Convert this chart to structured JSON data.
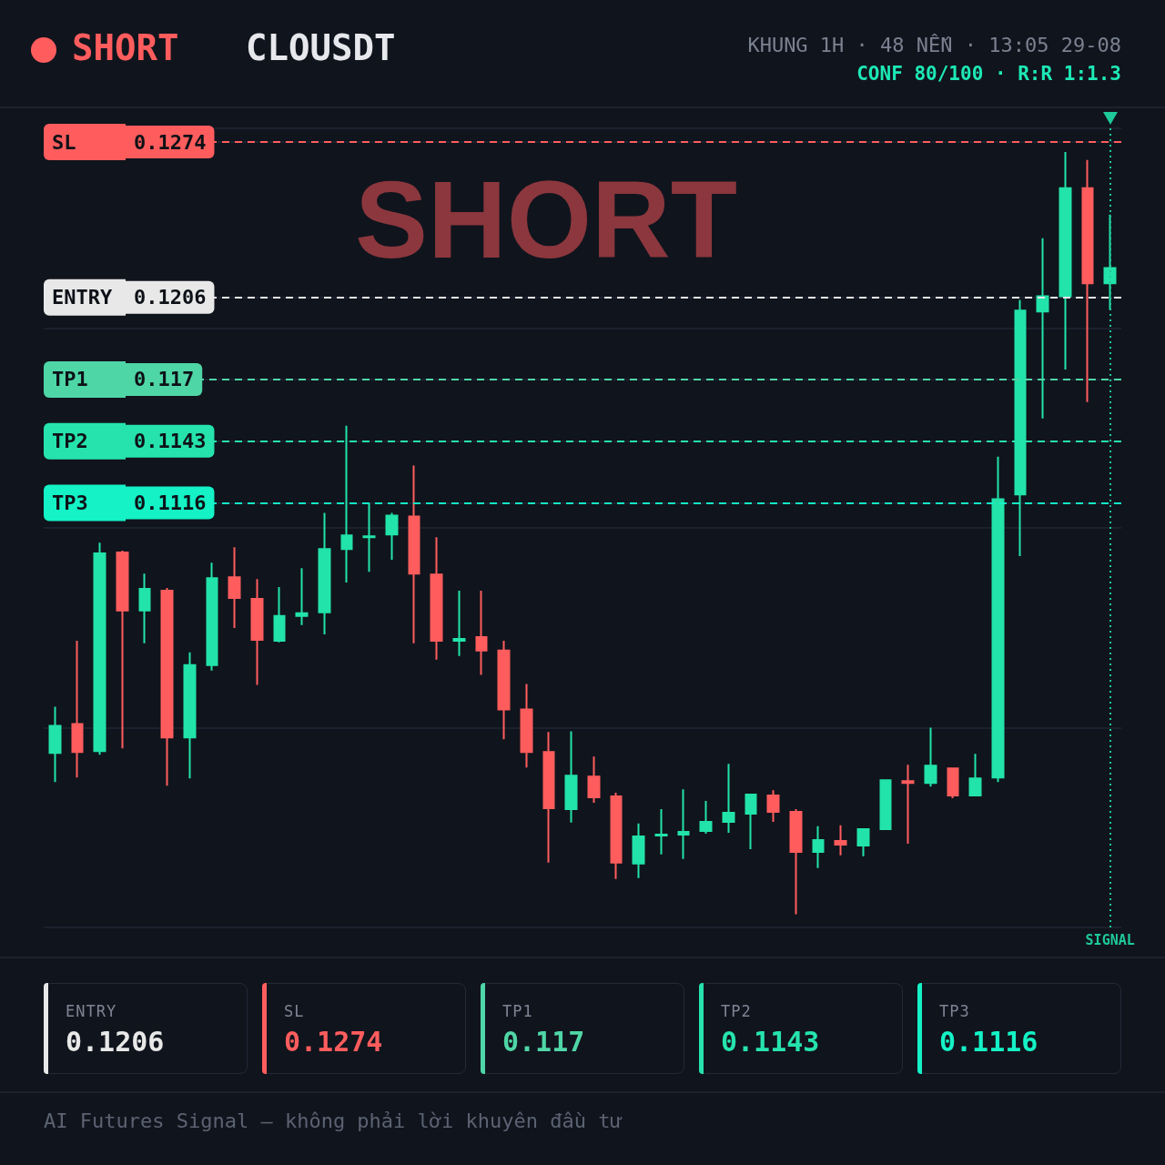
{
  "chart_data": [
    {
      "type": "candlestick",
      "title": "CLOUSDT",
      "subtitle": "SHORT",
      "annotations": [
        "KHUNG 1H · 48 NẾN · 13:05 29-08",
        "CONF 80/100 · R:R 1:1.3",
        "SHORT"
      ],
      "categories": [
        null,
        null,
        null,
        null,
        null,
        null,
        null,
        null,
        null,
        null,
        null,
        null,
        null,
        null,
        null,
        null,
        null,
        null,
        null,
        null,
        null,
        null,
        null,
        null,
        null,
        null,
        null,
        null,
        null,
        null,
        null,
        null,
        null,
        null,
        null,
        null,
        null,
        null,
        null,
        null,
        null,
        null,
        null,
        null,
        null,
        null,
        null,
        null
      ],
      "ohlc": [
        [
          0.10064,
          0.10267,
          0.09937,
          0.10183
        ],
        [
          0.10191,
          0.10556,
          0.09957,
          0.10068
        ],
        [
          0.10072,
          0.10985,
          0.10056,
          0.10938
        ],
        [
          0.10942,
          0.1095,
          0.10084,
          0.10688
        ],
        [
          0.10688,
          0.1085,
          0.10545,
          0.10783
        ],
        [
          0.10775,
          0.10787,
          0.09921,
          0.10132
        ],
        [
          0.10132,
          0.10505,
          0.09953,
          0.10449
        ],
        [
          0.10449,
          0.10898,
          0.10425,
          0.1083
        ],
        [
          0.10834,
          0.10965,
          0.10612,
          0.10743
        ],
        [
          0.10739,
          0.10826,
          0.10362,
          0.1056
        ],
        [
          0.10556,
          0.10791,
          0.10549,
          0.10664
        ],
        [
          0.10664,
          0.10874,
          0.10624,
          0.10676
        ],
        [
          0.1068,
          0.11116,
          0.10584,
          0.10957
        ],
        [
          0.10957,
          0.11497,
          0.10811,
          0.11017
        ],
        [
          0.11009,
          0.1116,
          0.10858,
          0.11013
        ],
        [
          0.11021,
          0.11116,
          0.1091,
          0.11104
        ],
        [
          0.111,
          0.11323,
          0.10545,
          0.1085
        ],
        [
          0.10846,
          0.11009,
          0.10473,
          0.10556
        ],
        [
          0.10556,
          0.10775,
          0.10489,
          0.10564
        ],
        [
          0.10572,
          0.10775,
          0.10406,
          0.10513
        ],
        [
          0.10513,
          0.10556,
          0.10124,
          0.10255
        ],
        [
          0.10255,
          0.10366,
          0.10001,
          0.10068
        ],
        [
          0.10068,
          0.10156,
          0.09584,
          0.09822
        ],
        [
          0.09818,
          0.10159,
          0.09759,
          0.09965
        ],
        [
          0.09961,
          0.10048,
          0.09846,
          0.0987
        ],
        [
          0.09874,
          0.0989,
          0.09512,
          0.09584
        ],
        [
          0.0958,
          0.09755,
          0.09516,
          0.09699
        ],
        [
          0.09703,
          0.09818,
          0.0962,
          0.09707
        ],
        [
          0.09707,
          0.09905,
          0.096,
          0.09719
        ],
        [
          0.09723,
          0.09854,
          0.09711,
          0.09762
        ],
        [
          0.09762,
          0.10017,
          0.09715,
          0.09802
        ],
        [
          0.09798,
          0.09882,
          0.09643,
          0.09882
        ],
        [
          0.09878,
          0.09901,
          0.09762,
          0.09806
        ],
        [
          0.09806,
          0.09818,
          0.09358,
          0.09631
        ],
        [
          0.09631,
          0.09743,
          0.0956,
          0.09683
        ],
        [
          0.09679,
          0.09747,
          0.09616,
          0.09663
        ],
        [
          0.09659,
          0.09735,
          0.09612,
          0.09731
        ],
        [
          0.09731,
          0.09949,
          0.09727,
          0.09945
        ],
        [
          0.09941,
          0.10013,
          0.09667,
          0.09933
        ],
        [
          0.09933,
          0.10175,
          0.09917,
          0.10009
        ],
        [
          0.09997,
          0.10001,
          0.09866,
          0.09878
        ],
        [
          0.09878,
          0.1006,
          0.09874,
          0.09953
        ],
        [
          0.09957,
          0.11362,
          0.09937,
          0.11176
        ],
        [
          0.11196,
          0.12049,
          0.10926,
          0.12002
        ],
        [
          0.11998,
          0.12319,
          0.11529,
          0.12065
        ],
        [
          0.12065,
          0.12696,
          0.11744,
          0.12538
        ],
        [
          0.12538,
          0.12661,
          0.11601,
          0.12121
        ],
        [
          0.12121,
          0.12422,
          0.12006,
          0.12188
        ]
      ],
      "colors": [
        "#22e3aa",
        "#ff5d5d",
        "#22e3aa",
        "#ff5d5d",
        "#22e3aa",
        "#ff5d5d",
        "#22e3aa",
        "#22e3aa",
        "#ff5d5d",
        "#ff5d5d",
        "#22e3aa",
        "#22e3aa",
        "#22e3aa",
        "#22e3aa",
        "#22e3aa",
        "#22e3aa",
        "#ff5d5d",
        "#ff5d5d",
        "#22e3aa",
        "#ff5d5d",
        "#ff5d5d",
        "#ff5d5d",
        "#ff5d5d",
        "#22e3aa",
        "#ff5d5d",
        "#ff5d5d",
        "#22e3aa",
        "#22e3aa",
        "#22e3aa",
        "#22e3aa",
        "#22e3aa",
        "#22e3aa",
        "#ff5d5d",
        "#ff5d5d",
        "#22e3aa",
        "#ff5d5d",
        "#22e3aa",
        "#22e3aa",
        "#ff5d5d",
        "#22e3aa",
        "#ff5d5d",
        "#22e3aa",
        "#22e3aa",
        "#22e3aa",
        "#22e3aa",
        "#22e3aa",
        "#ff5d5d",
        "#22e3aa"
      ],
      "ylim": [
        0.093,
        0.128
      ],
      "yticks": [
        {
          "value": 0.093,
          "label": null
        },
        {
          "value": 0.10175,
          "label": null
        },
        {
          "value": 0.1105,
          "label": null
        },
        0.1116,
        0.1143,
        0.117,
        {
          "value": 0.11925,
          "label": null
        },
        0.1206,
        0.1274,
        {
          "value": 0.128,
          "label": null
        }
      ],
      "grid": "y",
      "tick_labels": "y",
      "ref_lines": [
        {
          "axis": "y",
          "value": 0.1274,
          "label": "SL",
          "color": "#ff5d5d",
          "line_style": "dashed"
        },
        {
          "axis": "y",
          "value": 0.1206,
          "label": "ENTRY",
          "color": "#e8e8e8",
          "line_style": "dashed"
        },
        {
          "axis": "y",
          "value": 0.117,
          "label": "TP1",
          "color": "#4fd6a6",
          "line_style": "dashed"
        },
        {
          "axis": "y",
          "value": 0.1143,
          "label": "TP2",
          "color": "#26e3ad",
          "line_style": "dashed"
        },
        {
          "axis": "y",
          "value": 0.1116,
          "label": "TP3",
          "color": "#14f2c6",
          "line_style": "dashed"
        },
        {
          "axis": "x",
          "label": "SIGNAL",
          "color": "#1fc99a",
          "line_style": "dotted"
        }
      ]
    },
    {
      "type": "other",
      "categories": [
        "ENTRY",
        "SL",
        "TP1",
        "TP2",
        "TP3"
      ],
      "values": [
        0.1206,
        0.1274,
        0.117,
        0.1143,
        0.1116
      ],
      "colors": [
        "#e8e8e8",
        "#ff5d5d",
        "#4fd6a6",
        "#26e3ad",
        "#14f2c6"
      ],
      "data_labels": true,
      "annotations": [
        "AI Futures Signal — không phải lời khuyên đầu tư"
      ]
    }
  ]
}
